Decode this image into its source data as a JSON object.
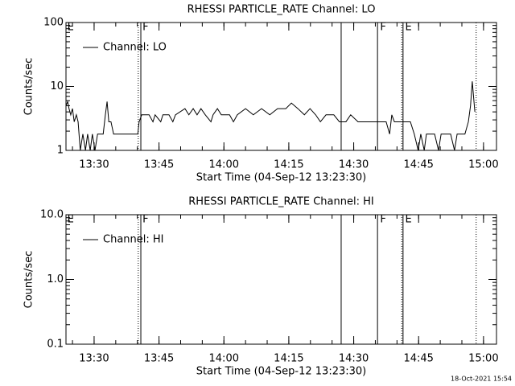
{
  "chart_data": [
    {
      "type": "line",
      "title": "RHESSI PARTICLE_RATE Channel: LO",
      "ylabel": "Counts/sec",
      "xlabel": "Start Time (04-Sep-12 13:23:30)",
      "log_y": true,
      "legend": "upper left",
      "xlim": [
        803.5,
        903
      ],
      "ylim": [
        1,
        100
      ],
      "yticks": [
        1,
        10,
        100
      ],
      "xticks": [
        {
          "value": 810,
          "label": "13:30"
        },
        {
          "value": 825,
          "label": "13:45"
        },
        {
          "value": 840,
          "label": "14:00"
        },
        {
          "value": 855,
          "label": "14:15"
        },
        {
          "value": 870,
          "label": "14:30"
        },
        {
          "value": 885,
          "label": "14:45"
        },
        {
          "value": 900,
          "label": "15:00"
        }
      ],
      "vlines": [
        {
          "x": 820.2,
          "style": "dotted"
        },
        {
          "x": 820.8,
          "style": "solid"
        },
        {
          "x": 867.1,
          "style": "solid"
        },
        {
          "x": 875.5,
          "style": "solid"
        },
        {
          "x": 881.1,
          "style": "dotted"
        },
        {
          "x": 881.4,
          "style": "solid"
        },
        {
          "x": 898.3,
          "style": "dotted"
        }
      ],
      "flags": [
        {
          "text": "E",
          "x": 803.8
        },
        {
          "text": "F",
          "x": 821.2
        },
        {
          "text": "F",
          "x": 876.1
        },
        {
          "text": "E",
          "x": 881.9
        }
      ],
      "series": [
        {
          "name": "Channel: LO",
          "color": "#000000",
          "x": [
            803.5,
            803.9,
            804.2,
            804.6,
            805.0,
            805.4,
            805.9,
            806.3,
            806.8,
            807.4,
            808.0,
            808.5,
            809.1,
            809.6,
            810.2,
            810.8,
            811.3,
            812.1,
            812.6,
            813.0,
            813.4,
            813.9,
            814.5,
            816.1,
            818.0,
            820.1,
            820.4,
            821.0,
            822.7,
            823.6,
            824.1,
            825.4,
            825.9,
            827.3,
            828.2,
            828.8,
            831.0,
            831.9,
            832.9,
            833.8,
            834.7,
            835.7,
            837.0,
            837.5,
            838.5,
            839.4,
            841.3,
            842.2,
            843.1,
            845.0,
            846.8,
            848.7,
            850.6,
            852.4,
            854.3,
            855.6,
            857.1,
            858.6,
            859.9,
            861.2,
            862.3,
            863.6,
            865.4,
            866.7,
            868.2,
            869.3,
            871.0,
            873.8,
            875.7,
            877.5,
            878.3,
            878.8,
            879.4,
            880.3,
            883.1,
            884.0,
            884.9,
            885.5,
            886.3,
            886.8,
            888.7,
            889.6,
            890.2,
            892.4,
            893.3,
            893.9,
            895.7,
            896.5,
            897.0,
            897.4,
            898.0
          ],
          "values": [
            5,
            5.8,
            4.5,
            3.6,
            4.5,
            2.8,
            3.6,
            2.8,
            1,
            1.8,
            1,
            1.8,
            1,
            1.8,
            1,
            1.8,
            1.8,
            1.8,
            3.6,
            5.8,
            2.8,
            2.8,
            1.8,
            1.8,
            1.8,
            1.8,
            2.8,
            3.6,
            3.6,
            2.8,
            3.6,
            2.8,
            3.6,
            3.6,
            2.8,
            3.6,
            4.5,
            3.6,
            4.5,
            3.6,
            4.5,
            3.6,
            2.8,
            3.6,
            4.5,
            3.6,
            3.6,
            2.8,
            3.6,
            4.5,
            3.6,
            4.5,
            3.6,
            4.5,
            4.5,
            5.5,
            4.5,
            3.6,
            4.5,
            3.6,
            2.8,
            3.6,
            3.6,
            2.8,
            2.8,
            3.6,
            2.8,
            2.8,
            2.8,
            2.8,
            1.8,
            3.6,
            2.8,
            2.8,
            2.8,
            1.8,
            1,
            1.8,
            1,
            1.8,
            1.8,
            1,
            1.8,
            1.8,
            1,
            1.8,
            1.8,
            2.8,
            5,
            12,
            4
          ]
        }
      ]
    },
    {
      "type": "line",
      "title": "RHESSI PARTICLE_RATE Channel: HI",
      "ylabel": "Counts/sec",
      "xlabel": "Start Time (04-Sep-12 13:23:30)",
      "log_y": true,
      "legend": "upper left",
      "xlim": [
        803.5,
        903
      ],
      "ylim": [
        0.1,
        10
      ],
      "yticks": [
        0.1,
        {
          "value": 1,
          "label": "1.0"
        },
        {
          "value": 10,
          "label": "10.0"
        }
      ],
      "xticks": [
        {
          "value": 810,
          "label": "13:30"
        },
        {
          "value": 825,
          "label": "13:45"
        },
        {
          "value": 840,
          "label": "14:00"
        },
        {
          "value": 855,
          "label": "14:15"
        },
        {
          "value": 870,
          "label": "14:30"
        },
        {
          "value": 885,
          "label": "14:45"
        },
        {
          "value": 900,
          "label": "15:00"
        }
      ],
      "vlines": [
        {
          "x": 820.2,
          "style": "dotted"
        },
        {
          "x": 820.8,
          "style": "solid"
        },
        {
          "x": 867.1,
          "style": "solid"
        },
        {
          "x": 875.5,
          "style": "solid"
        },
        {
          "x": 881.1,
          "style": "dotted"
        },
        {
          "x": 881.4,
          "style": "solid"
        },
        {
          "x": 898.3,
          "style": "dotted"
        }
      ],
      "flags": [
        {
          "text": "E",
          "x": 803.8
        },
        {
          "text": "F",
          "x": 821.2
        },
        {
          "text": "F",
          "x": 876.1
        },
        {
          "text": "E",
          "x": 881.9
        }
      ],
      "series": [
        {
          "name": "Channel: HI",
          "color": "#000000",
          "x": [],
          "values": []
        }
      ]
    }
  ],
  "footer": "18-Oct-2021 15:54"
}
